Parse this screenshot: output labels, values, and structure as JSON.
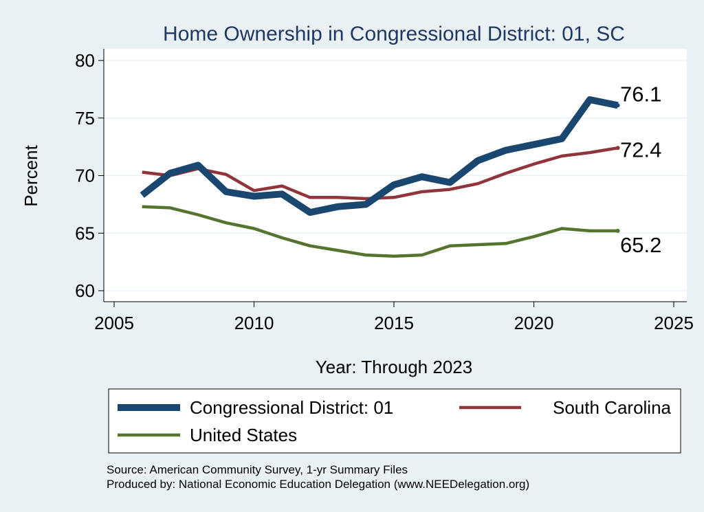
{
  "chart_data": {
    "type": "line",
    "title": "Home Ownership in Congressional District:  01, SC",
    "xlabel": "Year: Through 2023",
    "ylabel": "Percent",
    "xlim": [
      2005,
      2025
    ],
    "ylim": [
      60,
      80
    ],
    "x_ticks": [
      "2005",
      "2010",
      "2015",
      "2020",
      "2025"
    ],
    "y_ticks": [
      "60",
      "65",
      "70",
      "75",
      "80"
    ],
    "grid": true,
    "legend_position": "bottom",
    "x": [
      2006,
      2007,
      2008,
      2009,
      2010,
      2011,
      2012,
      2013,
      2014,
      2015,
      2016,
      2017,
      2018,
      2019,
      2020,
      2021,
      2022,
      2023
    ],
    "series": [
      {
        "name": "Congressional District:  01",
        "color": "#1a476f",
        "values": [
          68.3,
          70.2,
          70.9,
          68.6,
          68.2,
          68.4,
          66.8,
          67.3,
          67.5,
          69.2,
          69.9,
          69.4,
          71.3,
          72.2,
          72.7,
          73.2,
          76.6,
          76.1
        ],
        "end_label": "76.1"
      },
      {
        "name": "South Carolina",
        "color": "#90353b",
        "values": [
          70.3,
          70.0,
          70.6,
          70.1,
          68.7,
          69.1,
          68.1,
          68.1,
          68.0,
          68.1,
          68.6,
          68.8,
          69.3,
          70.2,
          71.0,
          71.7,
          72.0,
          72.4
        ],
        "end_label": "72.4"
      },
      {
        "name": "United States",
        "color": "#55752f",
        "values": [
          67.3,
          67.2,
          66.6,
          65.9,
          65.4,
          64.6,
          63.9,
          63.5,
          63.1,
          63.0,
          63.1,
          63.9,
          64.0,
          64.1,
          64.7,
          65.4,
          65.2,
          65.2
        ],
        "end_label": "65.2"
      }
    ]
  },
  "source": {
    "line1": "Source: American Community Survey, 1-yr Summary Files",
    "line2": "Produced by: National Economic Education Delegation (www.NEEDelegation.org)"
  }
}
